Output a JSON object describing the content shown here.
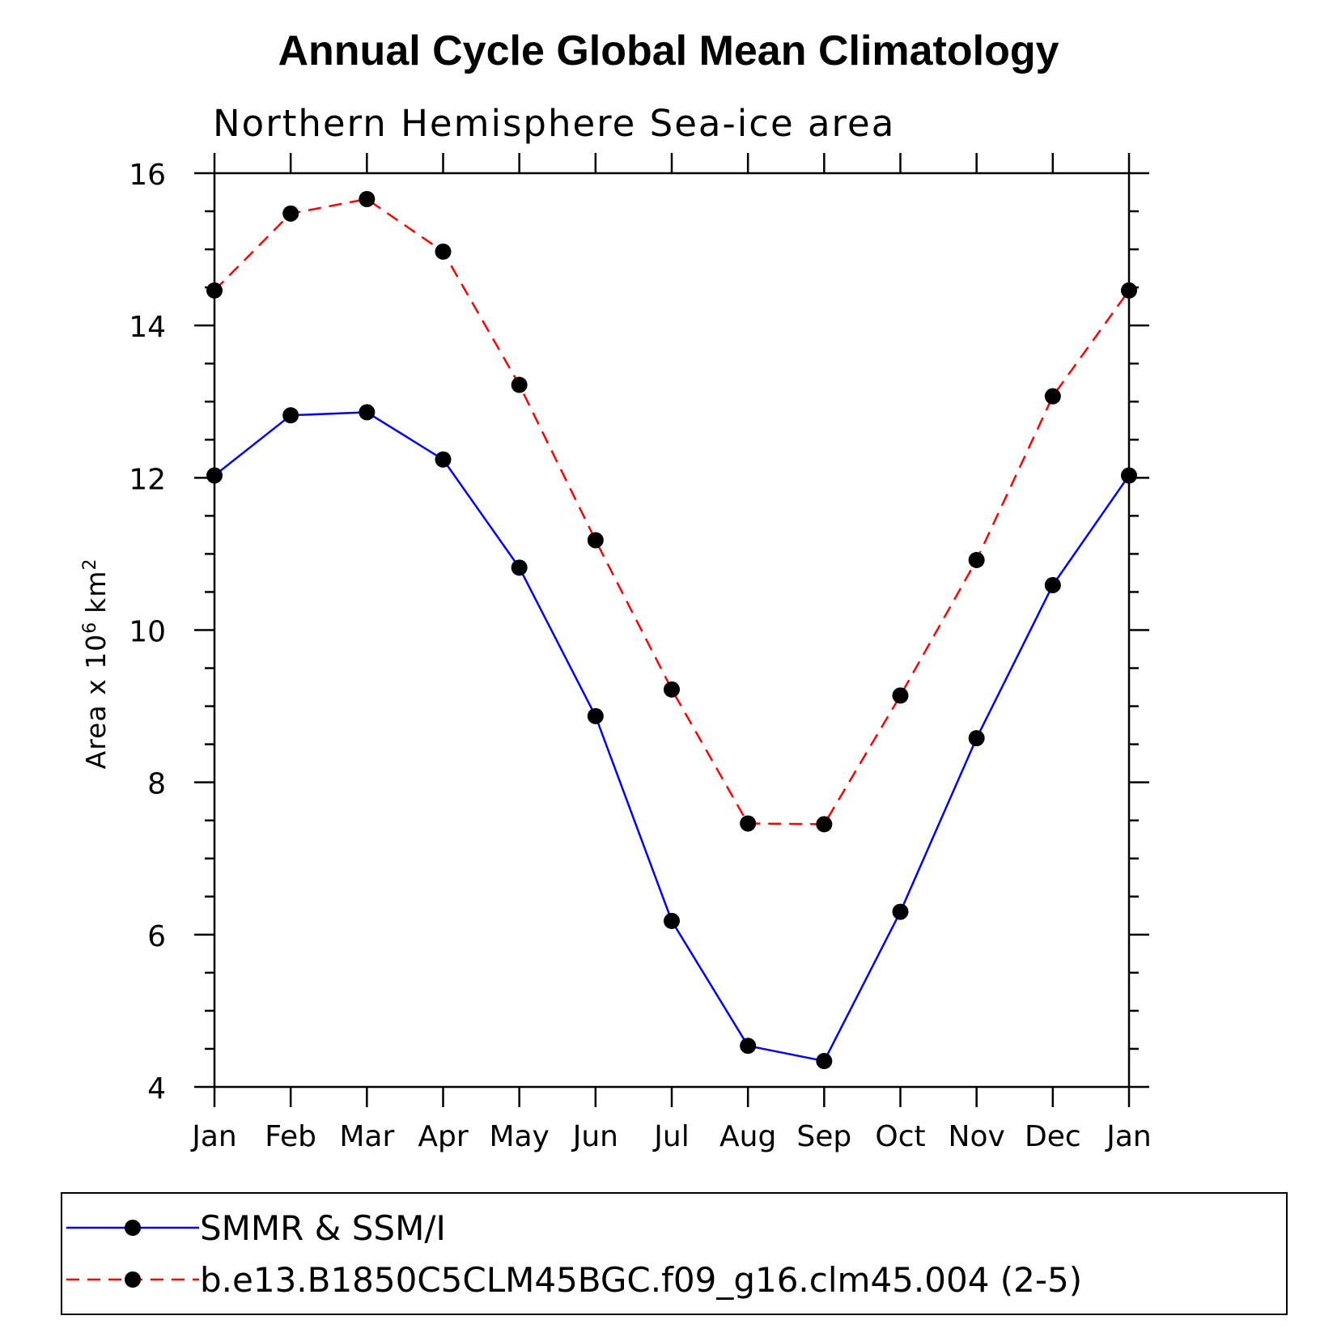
{
  "chart_data": {
    "type": "line",
    "title": "Annual Cycle Global Mean Climatology",
    "subtitle": "Northern Hemisphere Sea-ice area",
    "ylabel_prefix": "Area x 10",
    "ylabel_exp": "6",
    "ylabel_unit": "km",
    "ylabel_unit_exp": "2",
    "xlabel": "",
    "categories": [
      "Jan",
      "Feb",
      "Mar",
      "Apr",
      "May",
      "Jun",
      "Jul",
      "Aug",
      "Sep",
      "Oct",
      "Nov",
      "Dec",
      "Jan"
    ],
    "ylim": [
      4,
      16
    ],
    "yticks": [
      4,
      6,
      8,
      10,
      12,
      14,
      16
    ],
    "grid": false,
    "legend_position": "bottom",
    "series": [
      {
        "name": "SMMR & SSM/I",
        "color": "#0000ff",
        "style": "solid",
        "marker": "filled-circle",
        "values": [
          12.03,
          12.82,
          12.86,
          12.24,
          10.82,
          8.87,
          6.18,
          4.54,
          4.34,
          6.3,
          8.58,
          10.59,
          12.03
        ]
      },
      {
        "name": "b.e13.B1850C5CLM45BGC.f09_g16.clm45.004 (2-5)",
        "color": "#ff0000",
        "style": "dashed",
        "marker": "filled-circle",
        "values": [
          14.46,
          15.47,
          15.66,
          14.97,
          13.22,
          11.18,
          9.22,
          7.46,
          7.45,
          9.14,
          10.92,
          13.07,
          14.46
        ]
      }
    ]
  }
}
